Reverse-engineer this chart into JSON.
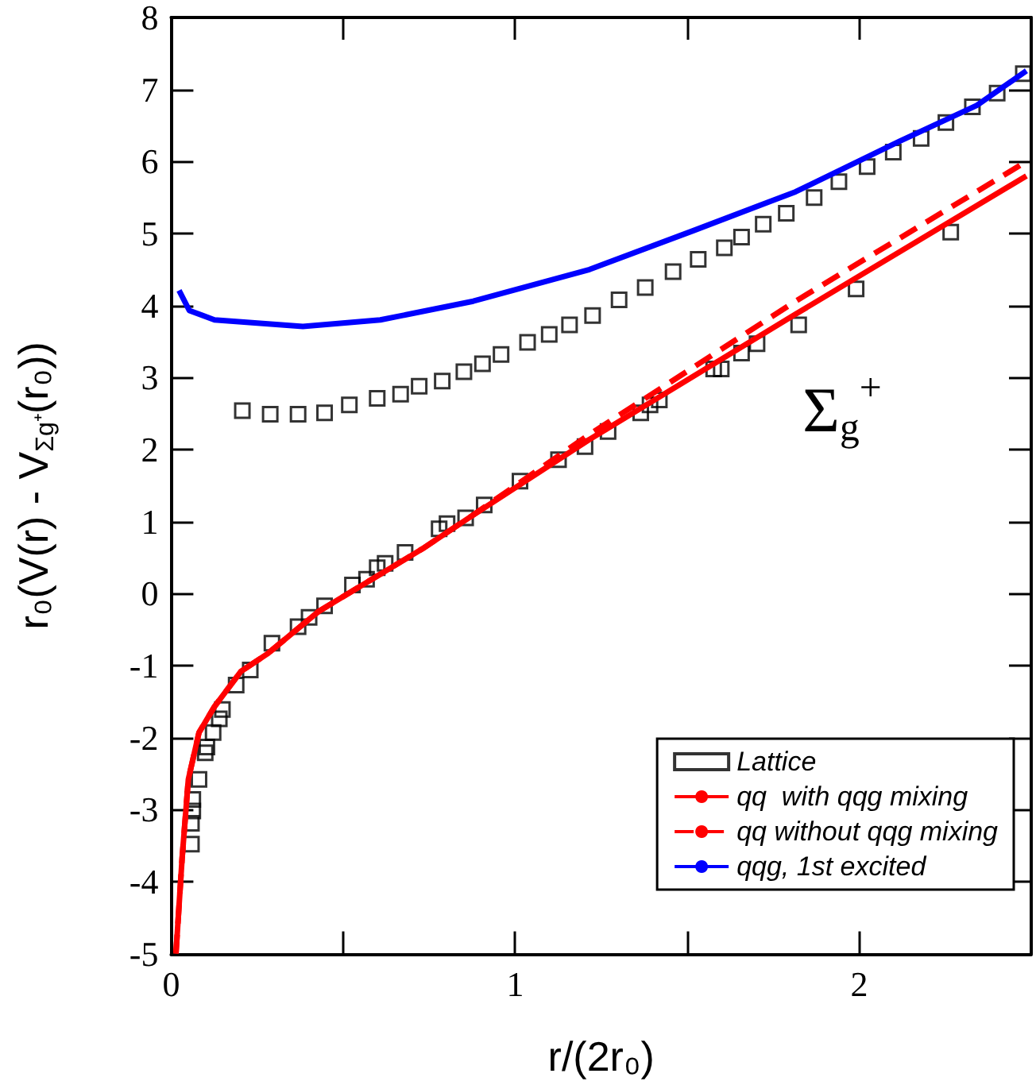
{
  "chart_data": {
    "type": "scatter",
    "xlabel": "r/(2r₀)",
    "ylabel": "r₀(V(r) - V$_{Σg⁺}$(r₀))",
    "xlim": [
      0,
      2.5
    ],
    "xticks": [
      0,
      {
        "value": 0.5,
        "label": null
      },
      1,
      {
        "value": 1.5,
        "label": null
      },
      2,
      {
        "value": 2.5,
        "label": null
      }
    ],
    "ylim": [
      -5,
      8
    ],
    "yticks": [
      -5,
      -4,
      -3,
      -2,
      -1,
      0,
      1,
      2,
      3,
      4,
      5,
      6,
      7,
      8
    ],
    "grid": false,
    "legend": "bottom right",
    "annotations": [
      "Σ$_{g}$$^{+}$"
    ],
    "series": [
      {
        "name": "Lattice",
        "marker": "square",
        "color": "#000000",
        "x": [
          0.207,
          0.288,
          0.369,
          0.446,
          0.518,
          0.599,
          0.667,
          0.721,
          0.788,
          0.851,
          0.905,
          0.959,
          1.036,
          1.099,
          1.158,
          1.225,
          1.302,
          1.378,
          1.459,
          1.532,
          1.608,
          1.658,
          1.721,
          1.788,
          1.869,
          1.941,
          2.023,
          2.099,
          2.18,
          2.252,
          2.329,
          2.401,
          2.477,
          0.059,
          0.059,
          0.063,
          0.063,
          0.081,
          0.099,
          0.104,
          0.122,
          0.14,
          0.149,
          0.189,
          0.23,
          0.293,
          0.369,
          0.401,
          0.446,
          0.527,
          0.568,
          0.599,
          0.622,
          0.68,
          0.779,
          0.802,
          0.856,
          0.91,
          1.014,
          1.126,
          1.203,
          1.27,
          1.365,
          1.392,
          1.419,
          1.577,
          1.599,
          1.658,
          1.703,
          1.824,
          1.991,
          2.266
        ],
        "values": [
          2.54,
          2.49,
          2.49,
          2.51,
          2.62,
          2.71,
          2.77,
          2.88,
          2.95,
          3.08,
          3.19,
          3.32,
          3.49,
          3.6,
          3.73,
          3.86,
          4.08,
          4.25,
          4.47,
          4.64,
          4.8,
          4.95,
          5.13,
          5.28,
          5.5,
          5.72,
          5.93,
          6.13,
          6.32,
          6.54,
          6.76,
          6.95,
          7.22,
          -3.48,
          -3.19,
          -3.02,
          -2.86,
          -2.58,
          -2.21,
          -2.13,
          -1.93,
          -1.74,
          -1.61,
          -1.27,
          -1.06,
          -0.69,
          -0.46,
          -0.33,
          -0.17,
          0.12,
          0.2,
          0.36,
          0.42,
          0.57,
          0.9,
          0.97,
          1.05,
          1.23,
          1.56,
          1.86,
          2.04,
          2.25,
          2.51,
          2.62,
          2.69,
          3.12,
          3.12,
          3.34,
          3.47,
          3.73,
          4.23,
          5.02
        ]
      },
      {
        "name": "qq  with qqg mixing",
        "type": "line",
        "marker": "none",
        "line_style": "solid",
        "color": "#ff0000",
        "x": [
          0.014,
          0.032,
          0.05,
          0.081,
          0.126,
          0.203,
          0.279,
          0.428,
          0.577,
          0.73,
          0.865,
          1.216,
          1.815,
          2.486
        ],
        "values": [
          -5,
          -3.67,
          -2.58,
          -1.93,
          -1.57,
          -1.08,
          -0.84,
          -0.25,
          0.18,
          0.62,
          1.05,
          2.14,
          3.88,
          5.8
        ]
      },
      {
        "name": "qq without qqg mixing",
        "type": "line",
        "marker": "none",
        "line_style": "dashed",
        "color": "#ff0000",
        "x": [
          0.014,
          0.032,
          0.05,
          0.081,
          0.126,
          0.203,
          0.279,
          0.428,
          0.577,
          0.73,
          0.865,
          1.216,
          1.815,
          2.486
        ],
        "values": [
          -5,
          -3.67,
          -2.58,
          -1.93,
          -1.57,
          -1.08,
          -0.84,
          -0.25,
          0.18,
          0.62,
          1.05,
          2.21,
          4.06,
          6.0
        ]
      },
      {
        "name": "qqg, 1st excited",
        "type": "line",
        "marker": "none",
        "line_style": "solid",
        "color": "#0000ff",
        "x": [
          0.023,
          0.053,
          0.126,
          0.383,
          0.608,
          0.878,
          1.216,
          1.518,
          1.815,
          2.117,
          2.342,
          2.486
        ],
        "values": [
          4.21,
          3.93,
          3.8,
          3.71,
          3.8,
          4.06,
          4.5,
          5.04,
          5.58,
          6.28,
          6.78,
          7.26
        ]
      }
    ]
  }
}
